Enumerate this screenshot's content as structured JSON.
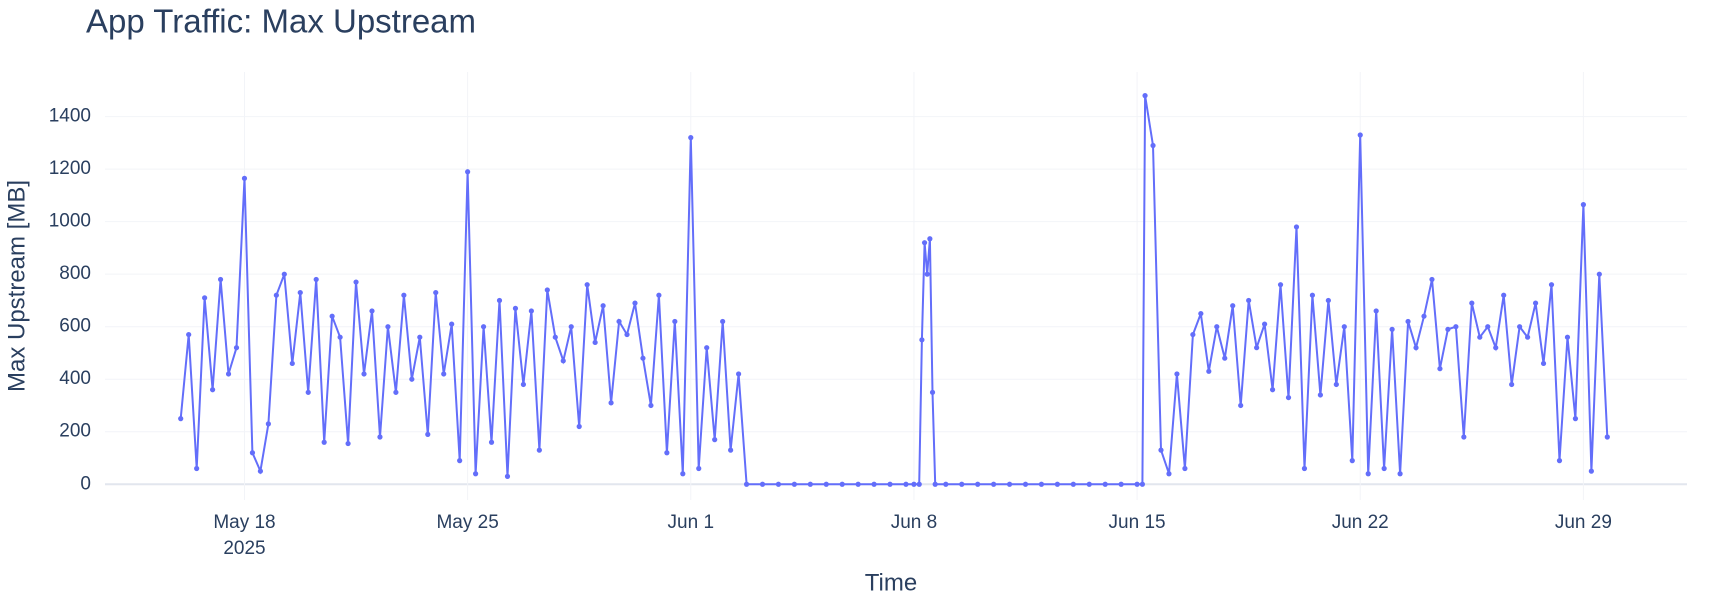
{
  "chart_data": {
    "type": "line",
    "title": "App Traffic: Max Upstream",
    "x_label": "Time",
    "y_label": "Max Upstream [MB]",
    "color": "#636efa",
    "grid": true,
    "xlim": [
      "2025-05-13 15:00",
      "2025-07-02 06:00"
    ],
    "xticks": [
      {
        "value": "2025-05-18 00:00",
        "label": "May 18"
      },
      {
        "value": "2025-05-25 00:00",
        "label": "May 25"
      },
      {
        "value": "2025-06-01 00:00",
        "label": "Jun 1"
      },
      {
        "value": "2025-06-08 00:00",
        "label": "Jun 8"
      },
      {
        "value": "2025-06-15 00:00",
        "label": "Jun 15"
      },
      {
        "value": "2025-06-22 00:00",
        "label": "Jun 22"
      },
      {
        "value": "2025-06-29 00:00",
        "label": "Jun 29"
      }
    ],
    "x_year_label": "2025",
    "ylim": [
      -60,
      1570
    ],
    "yticks": [
      0,
      200,
      400,
      600,
      800,
      1000,
      1200,
      1400
    ],
    "x": [
      "2025-05-16 00:00",
      "2025-05-16 06:00",
      "2025-05-16 12:00",
      "2025-05-16 18:00",
      "2025-05-17 00:00",
      "2025-05-17 06:00",
      "2025-05-17 12:00",
      "2025-05-17 18:00",
      "2025-05-18 00:00",
      "2025-05-18 06:00",
      "2025-05-18 12:00",
      "2025-05-18 18:00",
      "2025-05-19 00:00",
      "2025-05-19 06:00",
      "2025-05-19 12:00",
      "2025-05-19 18:00",
      "2025-05-20 00:00",
      "2025-05-20 06:00",
      "2025-05-20 12:00",
      "2025-05-20 18:00",
      "2025-05-21 00:00",
      "2025-05-21 06:00",
      "2025-05-21 12:00",
      "2025-05-21 18:00",
      "2025-05-22 00:00",
      "2025-05-22 06:00",
      "2025-05-22 12:00",
      "2025-05-22 18:00",
      "2025-05-23 00:00",
      "2025-05-23 06:00",
      "2025-05-23 12:00",
      "2025-05-23 18:00",
      "2025-05-24 00:00",
      "2025-05-24 06:00",
      "2025-05-24 12:00",
      "2025-05-24 18:00",
      "2025-05-25 00:00",
      "2025-05-25 06:00",
      "2025-05-25 12:00",
      "2025-05-25 18:00",
      "2025-05-26 00:00",
      "2025-05-26 06:00",
      "2025-05-26 12:00",
      "2025-05-26 18:00",
      "2025-05-27 00:00",
      "2025-05-27 06:00",
      "2025-05-27 12:00",
      "2025-05-27 18:00",
      "2025-05-28 00:00",
      "2025-05-28 06:00",
      "2025-05-28 12:00",
      "2025-05-28 18:00",
      "2025-05-29 00:00",
      "2025-05-29 06:00",
      "2025-05-29 12:00",
      "2025-05-29 18:00",
      "2025-05-30 00:00",
      "2025-05-30 06:00",
      "2025-05-30 12:00",
      "2025-05-30 18:00",
      "2025-05-31 00:00",
      "2025-05-31 06:00",
      "2025-05-31 12:00",
      "2025-05-31 18:00",
      "2025-06-01 00:00",
      "2025-06-01 06:00",
      "2025-06-01 12:00",
      "2025-06-01 18:00",
      "2025-06-02 00:00",
      "2025-06-02 06:00",
      "2025-06-02 12:00",
      "2025-06-02 18:00",
      "2025-06-03 06:00",
      "2025-06-03 18:00",
      "2025-06-04 06:00",
      "2025-06-04 18:00",
      "2025-06-05 06:00",
      "2025-06-05 18:00",
      "2025-06-06 06:00",
      "2025-06-06 18:00",
      "2025-06-07 06:00",
      "2025-06-07 18:00",
      "2025-06-08 00:00",
      "2025-06-08 04:00",
      "2025-06-08 06:00",
      "2025-06-08 08:00",
      "2025-06-08 10:00",
      "2025-06-08 12:00",
      "2025-06-08 14:00",
      "2025-06-08 16:00",
      "2025-06-09 00:00",
      "2025-06-09 12:00",
      "2025-06-10 00:00",
      "2025-06-10 12:00",
      "2025-06-11 00:00",
      "2025-06-11 12:00",
      "2025-06-12 00:00",
      "2025-06-12 12:00",
      "2025-06-13 00:00",
      "2025-06-13 12:00",
      "2025-06-14 00:00",
      "2025-06-14 12:00",
      "2025-06-15 00:00",
      "2025-06-15 04:00",
      "2025-06-15 06:00",
      "2025-06-15 12:00",
      "2025-06-15 18:00",
      "2025-06-16 00:00",
      "2025-06-16 06:00",
      "2025-06-16 12:00",
      "2025-06-16 18:00",
      "2025-06-17 00:00",
      "2025-06-17 06:00",
      "2025-06-17 12:00",
      "2025-06-17 18:00",
      "2025-06-18 00:00",
      "2025-06-18 06:00",
      "2025-06-18 12:00",
      "2025-06-18 18:00",
      "2025-06-19 00:00",
      "2025-06-19 06:00",
      "2025-06-19 12:00",
      "2025-06-19 18:00",
      "2025-06-20 00:00",
      "2025-06-20 06:00",
      "2025-06-20 12:00",
      "2025-06-20 18:00",
      "2025-06-21 00:00",
      "2025-06-21 06:00",
      "2025-06-21 12:00",
      "2025-06-21 18:00",
      "2025-06-22 00:00",
      "2025-06-22 06:00",
      "2025-06-22 12:00",
      "2025-06-22 18:00",
      "2025-06-23 00:00",
      "2025-06-23 06:00",
      "2025-06-23 12:00",
      "2025-06-23 18:00",
      "2025-06-24 00:00",
      "2025-06-24 06:00",
      "2025-06-24 12:00",
      "2025-06-24 18:00",
      "2025-06-25 00:00",
      "2025-06-25 06:00",
      "2025-06-25 12:00",
      "2025-06-25 18:00",
      "2025-06-26 00:00",
      "2025-06-26 06:00",
      "2025-06-26 12:00",
      "2025-06-26 18:00",
      "2025-06-27 00:00",
      "2025-06-27 06:00",
      "2025-06-27 12:00",
      "2025-06-27 18:00",
      "2025-06-28 00:00",
      "2025-06-28 06:00",
      "2025-06-28 12:00",
      "2025-06-28 18:00",
      "2025-06-29 00:00",
      "2025-06-29 06:00",
      "2025-06-29 12:00",
      "2025-06-29 18:00"
    ],
    "values": [
      250,
      570,
      60,
      710,
      360,
      780,
      420,
      520,
      1165,
      120,
      50,
      230,
      720,
      800,
      460,
      730,
      350,
      780,
      160,
      640,
      560,
      155,
      770,
      420,
      660,
      180,
      600,
      350,
      720,
      400,
      560,
      190,
      730,
      420,
      610,
      90,
      1190,
      40,
      600,
      160,
      700,
      30,
      670,
      380,
      660,
      130,
      740,
      560,
      470,
      600,
      220,
      760,
      540,
      680,
      310,
      620,
      570,
      690,
      480,
      300,
      720,
      120,
      620,
      40,
      1320,
      60,
      520,
      170,
      620,
      130,
      420,
      0,
      0,
      0,
      0,
      0,
      0,
      0,
      0,
      0,
      0,
      0,
      0,
      0,
      550,
      920,
      800,
      935,
      350,
      0,
      0,
      0,
      0,
      0,
      0,
      0,
      0,
      0,
      0,
      0,
      0,
      0,
      0,
      0,
      1480,
      1290,
      130,
      40,
      420,
      60,
      570,
      650,
      430,
      600,
      480,
      680,
      300,
      700,
      520,
      610,
      360,
      760,
      330,
      980,
      60,
      720,
      340,
      700,
      380,
      600,
      90,
      1330,
      40,
      660,
      60,
      590,
      40,
      620,
      520,
      640,
      780,
      440,
      590,
      600,
      180,
      690,
      560,
      600,
      520,
      720,
      380,
      600,
      560,
      690,
      460,
      760,
      90,
      560,
      250,
      1065,
      50,
      800,
      180
    ]
  }
}
